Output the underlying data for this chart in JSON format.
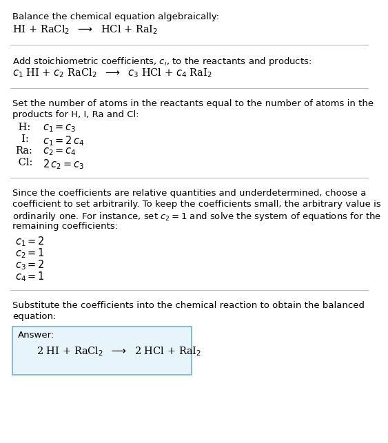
{
  "bg_color": "#ffffff",
  "text_color": "#000000",
  "box_edge_color": "#7ab8d9",
  "box_face_color": "#e8f4fb",
  "font_size_plain": 9.5,
  "font_size_math": 10.5,
  "font_size_eq": 10.5,
  "separator_color": "#bbbbbb",
  "section1_plain": "Balance the chemical equation algebraically:",
  "section1_math": "HI + RaCl$_2$  $\\longrightarrow$  HCl + RaI$_2$",
  "section2_plain": "Add stoichiometric coefficients, $c_i$, to the reactants and products:",
  "section2_math": "$c_1$ HI + $c_2$ RaCl$_2$  $\\longrightarrow$  $c_3$ HCl + $c_4$ RaI$_2$",
  "section3_plain1": "Set the number of atoms in the reactants equal to the number of atoms in the",
  "section3_plain2": "products for H, I, Ra and Cl:",
  "section3_eqs": [
    [
      " H:",
      "$c_1 = c_3$"
    ],
    [
      "  I:",
      "$c_1 = 2\\,c_4$"
    ],
    [
      "Ra:",
      "$c_2 = c_4$"
    ],
    [
      " Cl:",
      "$2\\,c_2 = c_3$"
    ]
  ],
  "section4_plain1": "Since the coefficients are relative quantities and underdetermined, choose a",
  "section4_plain2": "coefficient to set arbitrarily. To keep the coefficients small, the arbitrary value is",
  "section4_plain3": "ordinarily one. For instance, set $c_2 = 1$ and solve the system of equations for the",
  "section4_plain4": "remaining coefficients:",
  "section4_eqs": [
    "$c_1 = 2$",
    "$c_2 = 1$",
    "$c_3 = 2$",
    "$c_4 = 1$"
  ],
  "section5_plain1": "Substitute the coefficients into the chemical reaction to obtain the balanced",
  "section5_plain2": "equation:",
  "answer_label": "Answer:",
  "answer_math": "2 HI + RaCl$_2$  $\\longrightarrow$  2 HCl + RaI$_2$"
}
